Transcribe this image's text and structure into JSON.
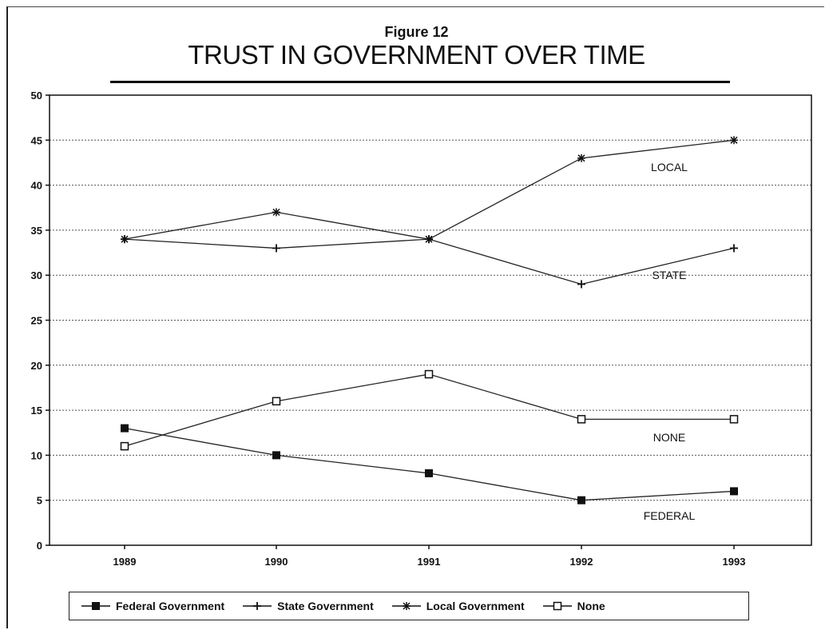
{
  "chart_data": {
    "type": "line",
    "figure_label": "Figure 12",
    "title": "TRUST IN GOVERNMENT OVER TIME",
    "xlabel": "",
    "ylabel": "",
    "x": [
      "1989",
      "1990",
      "1991",
      "1992",
      "1993"
    ],
    "ylim": [
      0,
      50
    ],
    "yticks": [
      "0",
      "5",
      "10",
      "15",
      "20",
      "25",
      "30",
      "35",
      "40",
      "45",
      "50"
    ],
    "grid": true,
    "legend_position": "bottom",
    "series": [
      {
        "name": "Federal Government",
        "marker": "filled-square",
        "values": [
          13,
          10,
          8,
          5,
          6
        ]
      },
      {
        "name": "State Government",
        "marker": "plus",
        "values": [
          34,
          33,
          34,
          29,
          33
        ]
      },
      {
        "name": "Local Government",
        "marker": "asterisk",
        "values": [
          34,
          37,
          34,
          43,
          45
        ]
      },
      {
        "name": "None",
        "marker": "open-square",
        "values": [
          11,
          16,
          19,
          14,
          14
        ]
      }
    ],
    "annotations": [
      {
        "text": "LOCAL",
        "x": "1992",
        "y": 42,
        "series": "Local Government"
      },
      {
        "text": "STATE",
        "x": "1992",
        "y": 30,
        "series": "State Government"
      },
      {
        "text": "NONE",
        "x": "1992",
        "y": 12,
        "series": "None"
      },
      {
        "text": "FEDERAL",
        "x": "1992",
        "y": 3.3,
        "series": "Federal Government"
      }
    ]
  }
}
